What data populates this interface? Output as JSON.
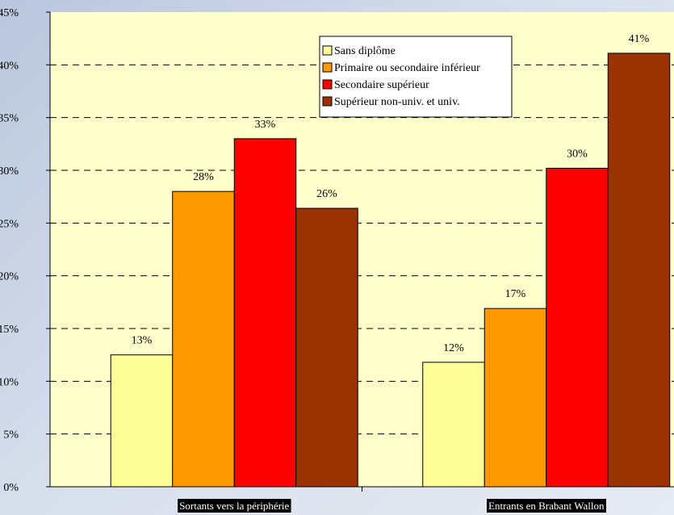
{
  "chart_data": {
    "type": "bar",
    "categories": [
      "Sortants vers la périphérie",
      "Entrants en Brabant Wallon"
    ],
    "series": [
      {
        "name": "Sans diplôme",
        "color": "#ffff99",
        "values": [
          12.5,
          11.8
        ],
        "labels": [
          "13%",
          "12%"
        ]
      },
      {
        "name": "Primaire ou secondaire inférieur",
        "color": "#ff9900",
        "values": [
          28.0,
          16.9
        ],
        "labels": [
          "28%",
          "17%"
        ]
      },
      {
        "name": "Secondaire supérieur",
        "color": "#ff0000",
        "values": [
          33.0,
          30.2
        ],
        "labels": [
          "33%",
          "30%"
        ]
      },
      {
        "name": "Supérieur non-univ. et univ.",
        "color": "#993300",
        "values": [
          26.4,
          41.1
        ],
        "labels": [
          "26%",
          "41%"
        ]
      }
    ],
    "ylim": [
      0,
      45
    ],
    "yticks": [
      "0%",
      "5%",
      "10%",
      "15%",
      "20%",
      "25%",
      "30%",
      "35%",
      "40%",
      "45%"
    ],
    "grid": true,
    "legend_position": "top-center",
    "plot_background": "#ffffcc",
    "title": "",
    "xlabel": "",
    "ylabel": ""
  }
}
